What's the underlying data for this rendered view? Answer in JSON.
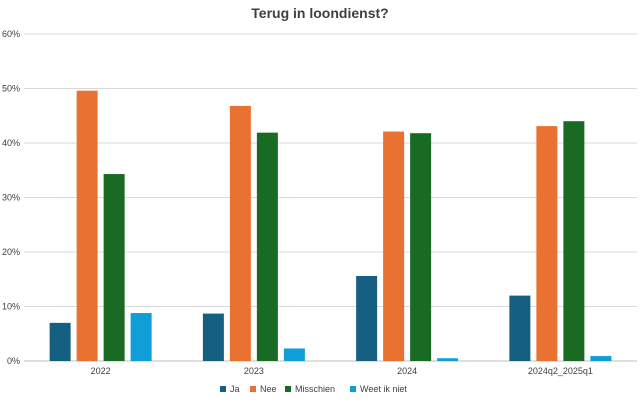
{
  "chart_data": {
    "type": "bar",
    "title": "Terug in loondienst?",
    "xlabel": "",
    "ylabel": "",
    "categories": [
      "2022",
      "2023",
      "2024",
      "2024q2_2025q1"
    ],
    "series": [
      {
        "name": "Ja",
        "color": "#156082",
        "values": [
          7.0,
          8.7,
          15.6,
          12.0
        ]
      },
      {
        "name": "Nee",
        "color": "#E97132",
        "values": [
          49.6,
          46.8,
          42.1,
          43.1
        ]
      },
      {
        "name": "Misschien",
        "color": "#196B24",
        "values": [
          34.3,
          41.9,
          41.8,
          44.0
        ]
      },
      {
        "name": "Weet ik niet",
        "color": "#0F9ED5",
        "values": [
          8.8,
          2.3,
          0.5,
          0.9
        ]
      }
    ],
    "ylim": [
      0,
      60
    ],
    "yticks": [
      0,
      10,
      20,
      30,
      40,
      50,
      60
    ],
    "ytick_labels": [
      "0%",
      "10%",
      "20%",
      "30%",
      "40%",
      "50%",
      "60%"
    ],
    "grid": true,
    "legend_position": "bottom"
  }
}
